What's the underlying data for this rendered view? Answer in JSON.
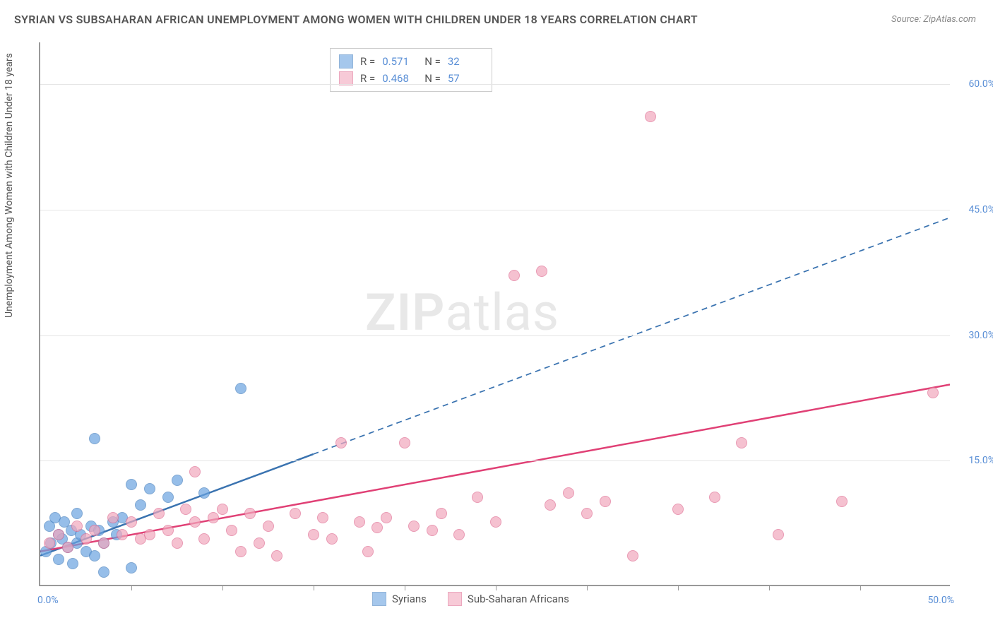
{
  "title": "SYRIAN VS SUBSAHARAN AFRICAN UNEMPLOYMENT AMONG WOMEN WITH CHILDREN UNDER 18 YEARS CORRELATION CHART",
  "source": "Source: ZipAtlas.com",
  "watermark_zip": "ZIP",
  "watermark_atlas": "atlas",
  "yaxis_label": "Unemployment Among Women with Children Under 18 years",
  "chart": {
    "type": "scatter",
    "xlim": [
      0,
      50
    ],
    "ylim": [
      0,
      65
    ],
    "x_ticks_visible": [
      0,
      50
    ],
    "x_tick_labels": [
      "0.0%",
      "50.0%"
    ],
    "x_minor_ticks": [
      5,
      10,
      15,
      20,
      25,
      30,
      35,
      40,
      45
    ],
    "y_ticks": [
      15,
      30,
      45,
      60
    ],
    "y_tick_labels": [
      "15.0%",
      "30.0%",
      "45.0%",
      "60.0%"
    ],
    "background_color": "#ffffff",
    "grid_color": "#e5e5e5",
    "axis_color": "#999999",
    "marker_radius": 8,
    "marker_fill_opacity": 0.35,
    "series": [
      {
        "name": "Syrians",
        "color": "#6aa3e0",
        "stroke": "#4a83c0",
        "r": 0.571,
        "n": 32,
        "trend": {
          "x1": 0,
          "y1": 3.5,
          "x2": 50,
          "y2": 44.0,
          "solid_until_x": 15,
          "color": "#3a73b0",
          "width": 2.5
        },
        "points": [
          [
            0.3,
            4.0
          ],
          [
            0.5,
            7.0
          ],
          [
            0.6,
            5.0
          ],
          [
            0.8,
            8.0
          ],
          [
            1.0,
            3.0
          ],
          [
            1.0,
            6.0
          ],
          [
            1.2,
            5.5
          ],
          [
            1.3,
            7.5
          ],
          [
            1.5,
            4.5
          ],
          [
            1.7,
            6.5
          ],
          [
            1.8,
            2.5
          ],
          [
            2.0,
            5.0
          ],
          [
            2.0,
            8.5
          ],
          [
            2.2,
            6.0
          ],
          [
            2.5,
            4.0
          ],
          [
            2.8,
            7.0
          ],
          [
            3.0,
            17.5
          ],
          [
            3.0,
            3.5
          ],
          [
            3.2,
            6.5
          ],
          [
            3.5,
            5.0
          ],
          [
            3.5,
            1.5
          ],
          [
            4.0,
            7.5
          ],
          [
            4.2,
            6.0
          ],
          [
            4.5,
            8.0
          ],
          [
            5.0,
            2.0
          ],
          [
            5.0,
            12.0
          ],
          [
            5.5,
            9.5
          ],
          [
            6.0,
            11.5
          ],
          [
            7.0,
            10.5
          ],
          [
            7.5,
            12.5
          ],
          [
            9.0,
            11.0
          ],
          [
            11.0,
            23.5
          ]
        ]
      },
      {
        "name": "Sub-Saharan Africans",
        "color": "#f2a8bd",
        "stroke": "#e07095",
        "r": 0.468,
        "n": 57,
        "trend": {
          "x1": 0,
          "y1": 4.0,
          "x2": 50,
          "y2": 24.0,
          "solid_until_x": 50,
          "color": "#e04075",
          "width": 2.5
        },
        "points": [
          [
            0.5,
            5.0
          ],
          [
            1.0,
            6.0
          ],
          [
            1.5,
            4.5
          ],
          [
            2.0,
            7.0
          ],
          [
            2.5,
            5.5
          ],
          [
            3.0,
            6.5
          ],
          [
            3.5,
            5.0
          ],
          [
            4.0,
            8.0
          ],
          [
            4.5,
            6.0
          ],
          [
            5.0,
            7.5
          ],
          [
            5.5,
            5.5
          ],
          [
            6.0,
            6.0
          ],
          [
            6.5,
            8.5
          ],
          [
            7.0,
            6.5
          ],
          [
            7.5,
            5.0
          ],
          [
            8.0,
            9.0
          ],
          [
            8.5,
            7.5
          ],
          [
            8.5,
            13.5
          ],
          [
            9.0,
            5.5
          ],
          [
            9.5,
            8.0
          ],
          [
            10.0,
            9.0
          ],
          [
            10.5,
            6.5
          ],
          [
            11.0,
            4.0
          ],
          [
            11.5,
            8.5
          ],
          [
            12.0,
            5.0
          ],
          [
            12.5,
            7.0
          ],
          [
            13.0,
            3.5
          ],
          [
            14.0,
            8.5
          ],
          [
            15.0,
            6.0
          ],
          [
            15.5,
            8.0
          ],
          [
            16.0,
            5.5
          ],
          [
            16.5,
            17.0
          ],
          [
            17.5,
            7.5
          ],
          [
            18.0,
            4.0
          ],
          [
            18.5,
            6.8
          ],
          [
            19.0,
            8.0
          ],
          [
            20.0,
            17.0
          ],
          [
            20.5,
            7.0
          ],
          [
            21.5,
            6.5
          ],
          [
            22.0,
            8.5
          ],
          [
            23.0,
            6.0
          ],
          [
            24.0,
            10.5
          ],
          [
            25.0,
            7.5
          ],
          [
            26.0,
            37.0
          ],
          [
            27.5,
            37.5
          ],
          [
            28.0,
            9.5
          ],
          [
            29.0,
            11.0
          ],
          [
            30.0,
            8.5
          ],
          [
            31.0,
            10.0
          ],
          [
            32.5,
            3.5
          ],
          [
            33.5,
            56.0
          ],
          [
            35.0,
            9.0
          ],
          [
            37.0,
            10.5
          ],
          [
            38.5,
            17.0
          ],
          [
            40.5,
            6.0
          ],
          [
            44.0,
            10.0
          ],
          [
            49.0,
            23.0
          ]
        ]
      }
    ]
  },
  "legend_top": {
    "r_label": "R =",
    "n_label": "N ="
  },
  "legend_bottom": {
    "items": [
      "Syrians",
      "Sub-Saharan Africans"
    ]
  }
}
